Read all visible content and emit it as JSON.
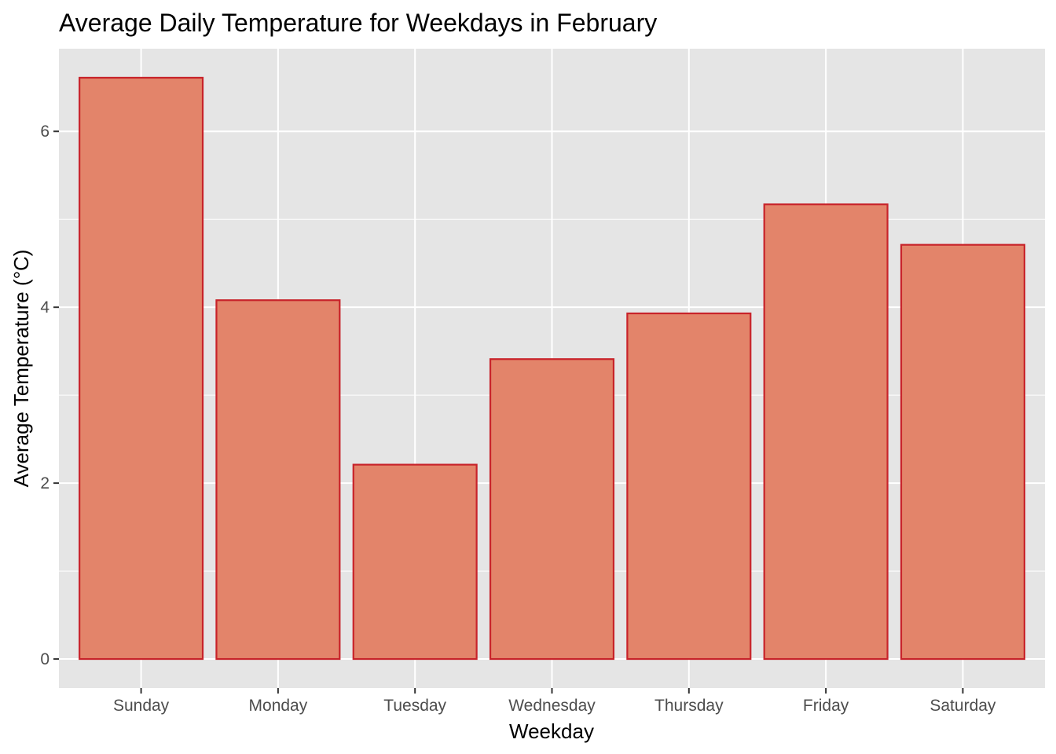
{
  "chart_data": {
    "type": "bar",
    "title": "Average Daily Temperature for Weekdays in February",
    "xlabel": "Weekday",
    "ylabel": "Average Temperature (°C)",
    "categories": [
      "Sunday",
      "Monday",
      "Tuesday",
      "Wednesday",
      "Thursday",
      "Friday",
      "Saturday"
    ],
    "values": [
      6.61,
      4.08,
      2.21,
      3.41,
      3.93,
      5.17,
      4.71
    ],
    "ylim": [
      -0.33,
      6.94
    ],
    "yticks": [
      0,
      2,
      4,
      6
    ],
    "ytick_labels": [
      "0",
      "2",
      "4",
      "6"
    ],
    "grid": true,
    "legend": "none",
    "colors": {
      "bar_fill": "#e3846a",
      "bar_stroke": "#c8232a",
      "panel_background": "#e5e5e5",
      "grid": "#ffffff"
    }
  }
}
